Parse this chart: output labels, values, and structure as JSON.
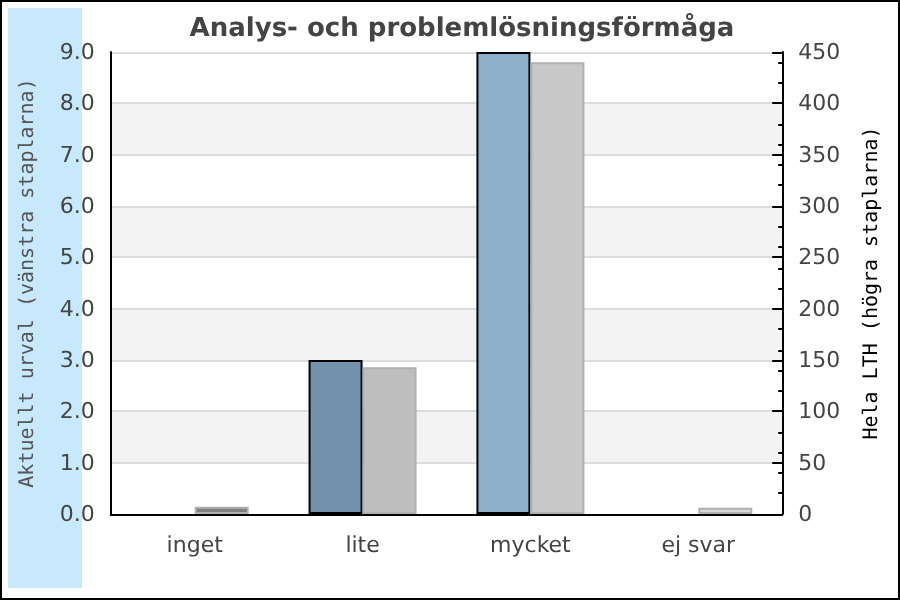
{
  "chart_data": {
    "type": "bar",
    "title": "Analys- och problemlösningsförmåga",
    "categories": [
      "inget",
      "lite",
      "mycket",
      "ej svar"
    ],
    "ylabel": "Aktuellt urval (vänstra staplarna)",
    "y2label": "Hela LTH (högra staplarna)",
    "series": [
      {
        "colors": [
          "#7292ae",
          "#7292ae",
          "#8eafcb",
          "#8eafcb"
        ],
        "values": [
          0,
          3,
          9,
          0
        ]
      },
      {
        "colors": [
          "#808080",
          "#bebebe",
          "#c8c8c8",
          "#d8d8d8"
        ],
        "values": [
          7,
          143,
          440,
          6
        ],
        "axis": "y2"
      }
    ],
    "ylim": [
      0,
      9
    ],
    "yticks": [
      {
        "value": 0,
        "label": "0.0"
      },
      {
        "value": 1,
        "label": "1.0"
      },
      {
        "value": 2,
        "label": "2.0"
      },
      {
        "value": 3,
        "label": "3.0"
      },
      {
        "value": 4,
        "label": "4.0"
      },
      {
        "value": 5,
        "label": "5.0"
      },
      {
        "value": 6,
        "label": "6.0"
      },
      {
        "value": 7,
        "label": "7.0"
      },
      {
        "value": 8,
        "label": "8.0"
      },
      {
        "value": 9,
        "label": "9.0"
      }
    ],
    "y2lim": [
      0,
      450
    ],
    "y2ticks": [
      0,
      50,
      100,
      150,
      200,
      250,
      300,
      350,
      400,
      450
    ],
    "grid": "y"
  }
}
